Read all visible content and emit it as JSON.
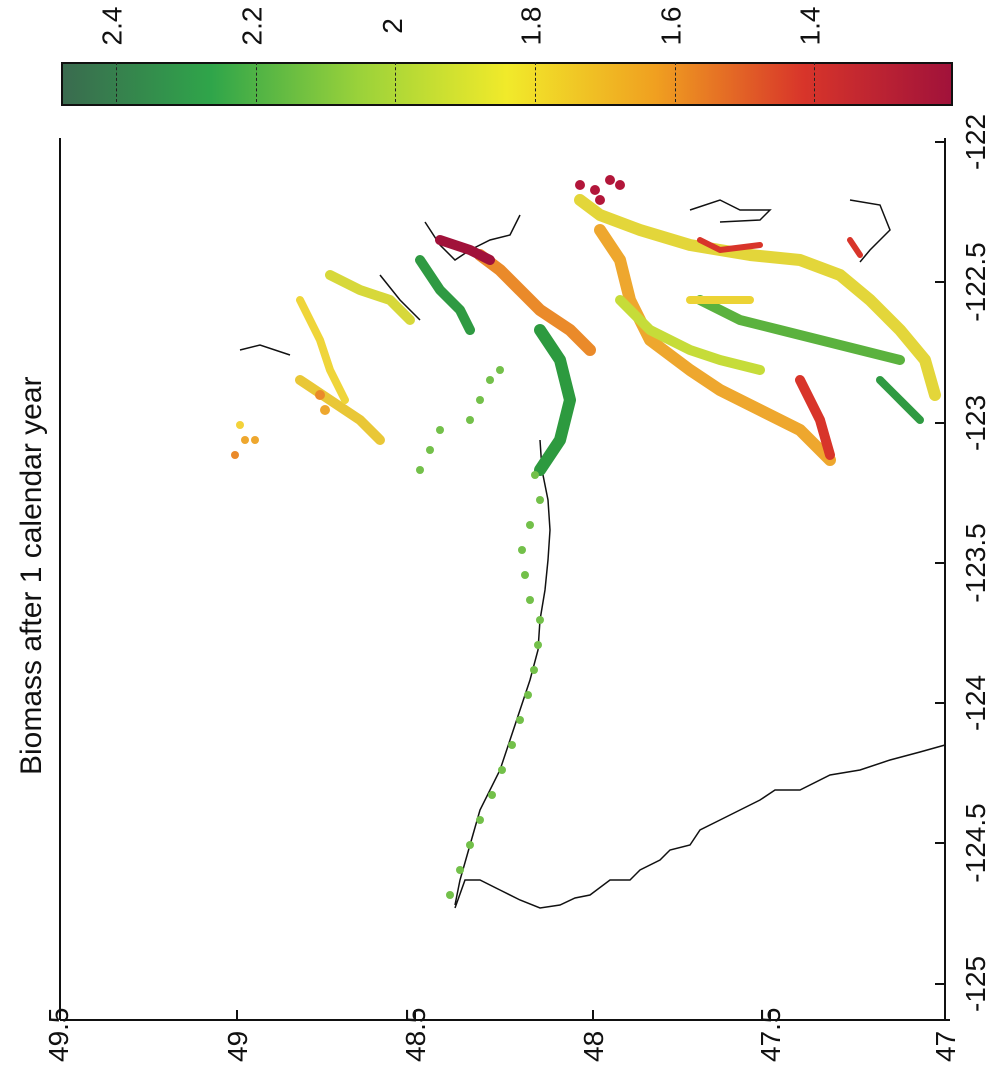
{
  "title": "Biomass after 1 calendar year",
  "colorbar": {
    "ticks": [
      "2.4",
      "2.2",
      "2",
      "1.8",
      "1.6",
      "1.4"
    ],
    "colors": [
      "#3a6b4f",
      "#2fa54a",
      "#9ad23a",
      "#f1ea2a",
      "#f0a020",
      "#d8352a",
      "#a1123a"
    ]
  },
  "axes": {
    "lon_ticks": [
      "-122",
      "-122.5",
      "-123",
      "-123.5",
      "-124",
      "-124.5",
      "-125"
    ],
    "lat_ticks": [
      "49.5",
      "49",
      "48.5",
      "48",
      "47.5",
      "47"
    ]
  }
}
